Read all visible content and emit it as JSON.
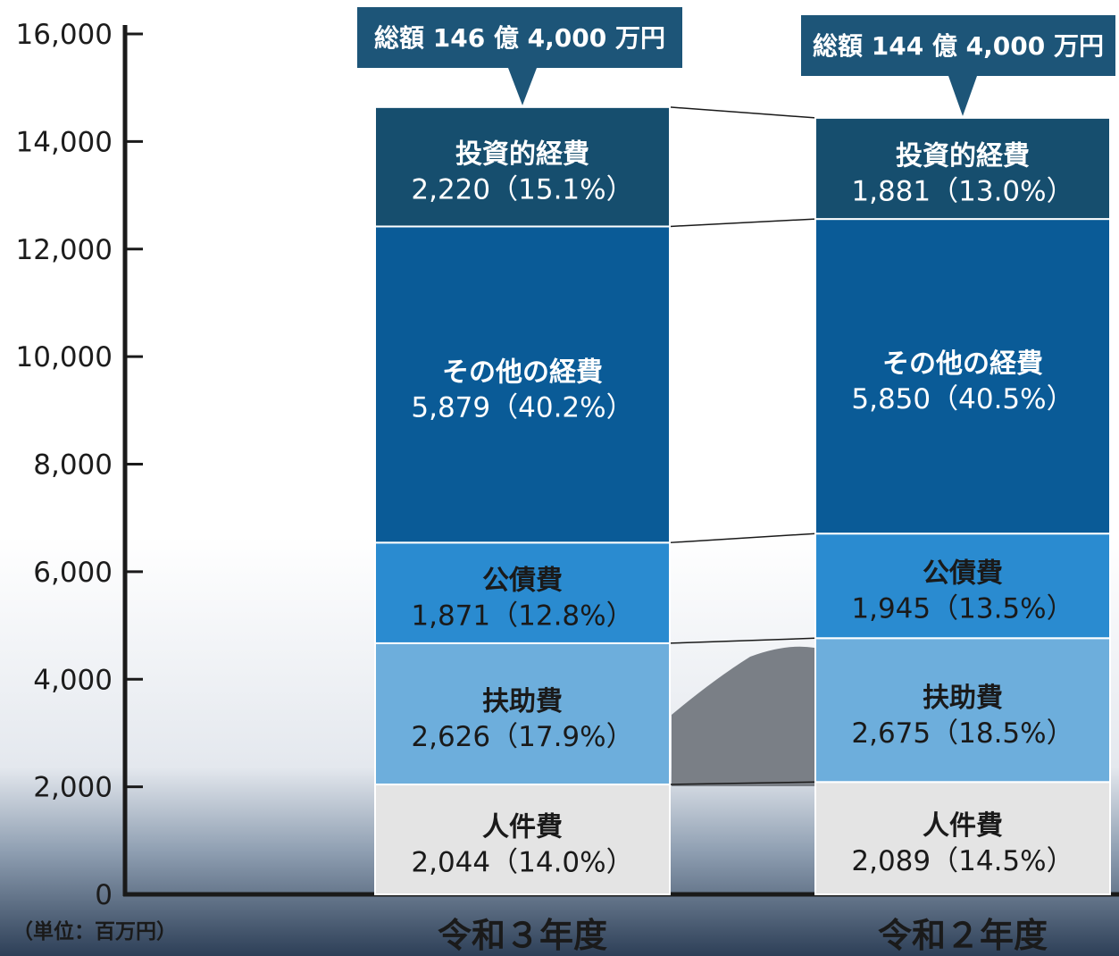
{
  "chart_data": {
    "type": "bar",
    "stacked": true,
    "unit_label": "（単位：百万円）",
    "ylim": [
      0,
      16000
    ],
    "yticks": [
      "0",
      "2,000",
      "4,000",
      "6,000",
      "8,000",
      "10,000",
      "12,000",
      "14,000",
      "16,000"
    ],
    "categories": [
      "令和３年度",
      "令和２年度"
    ],
    "totals": [
      "総額 146 億 4,000 万円",
      "総額 144 億 4,000 万円"
    ],
    "series": [
      {
        "name": "人件費",
        "color": "#e4e4e4",
        "text_color": "#1a1a1a",
        "values": [
          2044,
          2089
        ],
        "labels": [
          "2,044（14.0%）",
          "2,089（14.5%）"
        ]
      },
      {
        "name": "扶助費",
        "color": "#6daedc",
        "text_color": "#1a1a1a",
        "values": [
          2626,
          2675
        ],
        "labels": [
          "2,626（17.9%）",
          "2,675（18.5%）"
        ]
      },
      {
        "name": "公債費",
        "color": "#2a8bd0",
        "text_color": "#1a1a1a",
        "values": [
          1871,
          1945
        ],
        "labels": [
          "1,871（12.8%）",
          "1,945（13.5%）"
        ]
      },
      {
        "name": "その他の経費",
        "color": "#0a5b97",
        "text_color": "#ffffff",
        "values": [
          5879,
          5850
        ],
        "labels": [
          "5,879（40.2%）",
          "5,850（40.5%）"
        ]
      },
      {
        "name": "投資的経費",
        "color": "#164e6e",
        "text_color": "#ffffff",
        "values": [
          2220,
          1881
        ],
        "labels": [
          "2,220（15.1%）",
          "1,881（13.0%）"
        ]
      }
    ],
    "colors": {
      "axis": "#1a1a1a",
      "callout": "#1d5578"
    }
  }
}
